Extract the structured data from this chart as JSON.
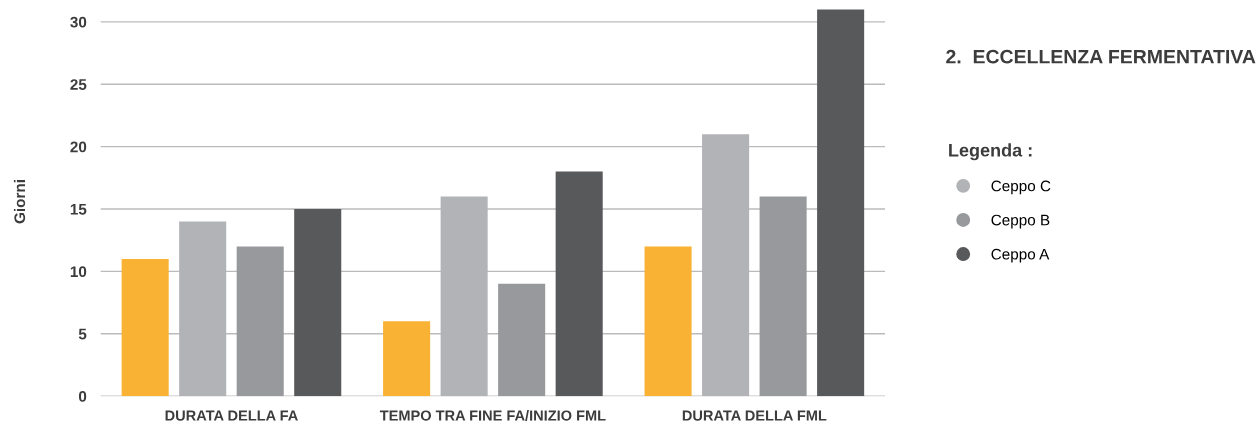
{
  "chart_data": {
    "type": "bar",
    "title": "2.  ECCELLENZA FERMENTATIVA",
    "ylabel": "Giorni",
    "legend_title": "Legenda :",
    "categories": [
      "DURATA DELLA FA",
      "TEMPO TRA FINE FA/INIZIO FML",
      "DURATA DELLA FML"
    ],
    "series": [
      {
        "color": "#f9b233",
        "values": [
          11,
          6,
          12
        ]
      },
      {
        "name": "Ceppo C",
        "color": "#b1b3b6",
        "values": [
          14,
          16,
          21
        ]
      },
      {
        "name": "Ceppo B",
        "color": "#97999c",
        "values": [
          12,
          9,
          16
        ]
      },
      {
        "name": "Ceppo A",
        "color": "#58595b",
        "values": [
          15,
          18,
          31
        ]
      }
    ],
    "ylim": [
      0,
      31.2
    ],
    "yticks": [
      0,
      5,
      10,
      15,
      20,
      25,
      30
    ],
    "grid": "y",
    "legend": "right"
  }
}
